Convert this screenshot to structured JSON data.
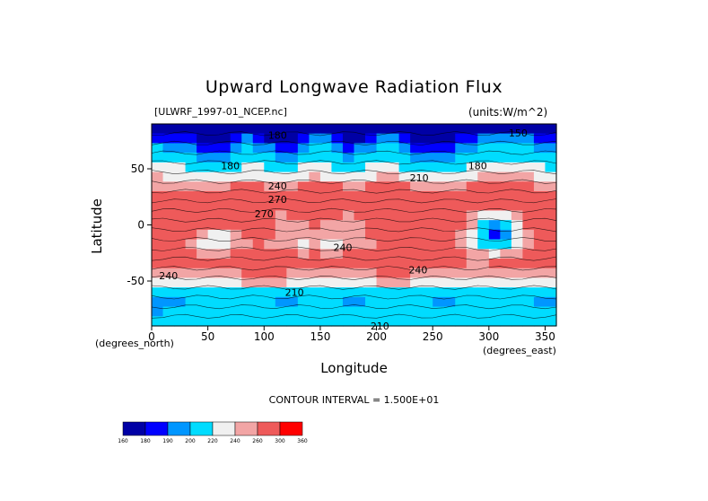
{
  "chart_data": {
    "type": "heatmap",
    "title": "Upward Longwave Radiation Flux",
    "subtitle_left": "[ULWRF_1997-01_NCEP.nc]",
    "subtitle_right": "(units:W/m^2)",
    "xlabel": "Longitude",
    "ylabel": "Latitude",
    "x_unit_label": "(degrees_east)",
    "y_unit_label": "(degrees_north)",
    "xlim": [
      0,
      360
    ],
    "ylim": [
      -90,
      90
    ],
    "x_ticks": [
      0,
      50,
      100,
      150,
      200,
      250,
      300,
      350
    ],
    "y_ticks": [
      50,
      0,
      -50
    ],
    "contour_interval_text": "CONTOUR INTERVAL = 1.500E+01",
    "contour_labels": [
      {
        "text": "180",
        "lon": 112,
        "lat": 80
      },
      {
        "text": "150",
        "lon": 326,
        "lat": 82
      },
      {
        "text": "180",
        "lon": 70,
        "lat": 53
      },
      {
        "text": "180",
        "lon": 290,
        "lat": 53
      },
      {
        "text": "240",
        "lon": 112,
        "lat": 35
      },
      {
        "text": "210",
        "lon": 238,
        "lat": 42
      },
      {
        "text": "270",
        "lon": 112,
        "lat": 23
      },
      {
        "text": "270",
        "lon": 100,
        "lat": 10
      },
      {
        "text": "240",
        "lon": 170,
        "lat": -20
      },
      {
        "text": "240",
        "lon": 237,
        "lat": -40
      },
      {
        "text": "240",
        "lon": 15,
        "lat": -45
      },
      {
        "text": "210",
        "lon": 127,
        "lat": -60
      },
      {
        "text": "210",
        "lon": 203,
        "lat": -90
      }
    ],
    "legend": {
      "levels": [
        "160",
        "180",
        "190",
        "200",
        "220",
        "240",
        "260",
        "300",
        "360"
      ],
      "colors": [
        "#0000a5",
        "#0000ff",
        "#0096ff",
        "#00dcff",
        "#f0f0f0",
        "#f2a5a5",
        "#ee5a5a",
        "#ff0000"
      ]
    },
    "field": [
      [
        170,
        168,
        166,
        164,
        160,
        158,
        160,
        166,
        172,
        170,
        160,
        156,
        160,
        168,
        175,
        172,
        164,
        158,
        160,
        168,
        176,
        174,
        166,
        158,
        152,
        150,
        156,
        162,
        168,
        172,
        176,
        174,
        176,
        172,
        168,
        166
      ],
      [
        188,
        186,
        184,
        180,
        176,
        174,
        176,
        182,
        190,
        188,
        178,
        172,
        176,
        184,
        192,
        190,
        182,
        176,
        178,
        186,
        194,
        192,
        184,
        176,
        170,
        168,
        174,
        180,
        186,
        190,
        194,
        192,
        194,
        190,
        186,
        184
      ],
      [
        200,
        198,
        196,
        192,
        186,
        182,
        186,
        192,
        200,
        198,
        190,
        184,
        188,
        196,
        204,
        202,
        194,
        188,
        190,
        198,
        206,
        204,
        196,
        188,
        182,
        180,
        186,
        192,
        198,
        202,
        206,
        204,
        206,
        202,
        198,
        196
      ],
      [
        212,
        210,
        206,
        202,
        196,
        192,
        196,
        202,
        210,
        208,
        200,
        194,
        198,
        206,
        214,
        212,
        204,
        198,
        200,
        208,
        216,
        214,
        206,
        198,
        192,
        190,
        196,
        202,
        208,
        212,
        216,
        214,
        216,
        212,
        208,
        206
      ],
      [
        226,
        224,
        220,
        216,
        210,
        206,
        208,
        214,
        222,
        220,
        214,
        208,
        212,
        220,
        226,
        224,
        218,
        212,
        214,
        220,
        228,
        226,
        218,
        212,
        206,
        204,
        208,
        214,
        220,
        224,
        228,
        226,
        228,
        224,
        220,
        218
      ],
      [
        240,
        238,
        236,
        232,
        226,
        222,
        224,
        230,
        236,
        234,
        228,
        224,
        228,
        234,
        240,
        238,
        232,
        228,
        230,
        236,
        242,
        240,
        234,
        228,
        222,
        220,
        224,
        230,
        236,
        240,
        242,
        240,
        242,
        240,
        236,
        234
      ],
      [
        256,
        254,
        252,
        250,
        248,
        250,
        256,
        262,
        264,
        262,
        258,
        256,
        258,
        262,
        266,
        264,
        260,
        258,
        258,
        262,
        266,
        264,
        260,
        256,
        252,
        250,
        252,
        256,
        260,
        262,
        264,
        262,
        262,
        260,
        258,
        256
      ],
      [
        272,
        270,
        268,
        266,
        268,
        272,
        276,
        278,
        276,
        272,
        268,
        270,
        272,
        274,
        276,
        274,
        272,
        270,
        270,
        272,
        274,
        272,
        270,
        268,
        266,
        264,
        266,
        270,
        272,
        274,
        274,
        272,
        272,
        270,
        272,
        272
      ],
      [
        282,
        280,
        276,
        274,
        276,
        278,
        282,
        284,
        280,
        274,
        270,
        272,
        276,
        278,
        280,
        276,
        272,
        270,
        272,
        276,
        280,
        278,
        276,
        274,
        272,
        270,
        272,
        276,
        278,
        280,
        280,
        278,
        276,
        278,
        280,
        282
      ],
      [
        288,
        286,
        280,
        276,
        274,
        278,
        284,
        286,
        282,
        276,
        266,
        258,
        262,
        270,
        274,
        270,
        264,
        256,
        260,
        268,
        276,
        282,
        286,
        288,
        286,
        284,
        278,
        264,
        250,
        236,
        226,
        236,
        254,
        270,
        280,
        286
      ],
      [
        290,
        288,
        284,
        280,
        276,
        278,
        284,
        288,
        284,
        276,
        264,
        252,
        248,
        256,
        262,
        258,
        252,
        248,
        254,
        264,
        274,
        282,
        288,
        290,
        290,
        288,
        280,
        262,
        240,
        212,
        196,
        210,
        238,
        262,
        280,
        288
      ],
      [
        286,
        284,
        278,
        262,
        240,
        228,
        236,
        252,
        266,
        270,
        260,
        248,
        240,
        246,
        250,
        244,
        240,
        242,
        250,
        262,
        272,
        280,
        286,
        288,
        288,
        284,
        276,
        258,
        232,
        206,
        184,
        196,
        228,
        256,
        276,
        284
      ],
      [
        280,
        278,
        272,
        258,
        236,
        220,
        226,
        242,
        258,
        264,
        258,
        248,
        240,
        238,
        242,
        238,
        236,
        240,
        248,
        258,
        268,
        276,
        282,
        284,
        284,
        280,
        272,
        256,
        234,
        214,
        200,
        208,
        232,
        256,
        272,
        280
      ],
      [
        276,
        276,
        272,
        266,
        258,
        252,
        254,
        262,
        270,
        274,
        272,
        266,
        260,
        258,
        260,
        258,
        258,
        262,
        266,
        270,
        274,
        278,
        280,
        280,
        278,
        274,
        268,
        260,
        250,
        242,
        238,
        242,
        254,
        266,
        272,
        276
      ],
      [
        270,
        270,
        268,
        266,
        264,
        262,
        262,
        266,
        272,
        276,
        276,
        272,
        268,
        264,
        262,
        262,
        264,
        266,
        268,
        270,
        272,
        274,
        274,
        272,
        270,
        266,
        262,
        260,
        258,
        258,
        260,
        262,
        266,
        268,
        270,
        270
      ],
      [
        256,
        256,
        254,
        254,
        252,
        252,
        252,
        256,
        262,
        266,
        266,
        262,
        258,
        254,
        252,
        252,
        254,
        256,
        256,
        258,
        260,
        260,
        260,
        258,
        256,
        254,
        252,
        252,
        254,
        256,
        258,
        258,
        258,
        258,
        256,
        256
      ],
      [
        238,
        238,
        236,
        236,
        236,
        236,
        236,
        238,
        242,
        246,
        246,
        242,
        238,
        236,
        234,
        234,
        236,
        236,
        236,
        238,
        240,
        240,
        240,
        238,
        236,
        236,
        236,
        236,
        236,
        238,
        238,
        238,
        238,
        238,
        238,
        238
      ],
      [
        212,
        212,
        210,
        210,
        210,
        212,
        214,
        216,
        216,
        214,
        212,
        210,
        208,
        208,
        208,
        208,
        210,
        210,
        210,
        212,
        214,
        214,
        212,
        212,
        210,
        210,
        210,
        212,
        212,
        214,
        214,
        214,
        214,
        212,
        212,
        212
      ],
      [
        196,
        196,
        198,
        200,
        202,
        204,
        206,
        206,
        204,
        202,
        200,
        198,
        198,
        200,
        202,
        202,
        200,
        198,
        198,
        200,
        202,
        204,
        204,
        202,
        200,
        198,
        198,
        200,
        202,
        204,
        204,
        204,
        202,
        200,
        198,
        196
      ],
      [
        198,
        200,
        204,
        208,
        212,
        214,
        214,
        212,
        208,
        206,
        206,
        206,
        208,
        212,
        214,
        212,
        208,
        206,
        206,
        210,
        214,
        216,
        214,
        210,
        206,
        204,
        206,
        210,
        214,
        216,
        214,
        210,
        206,
        204,
        202,
        200
      ],
      [
        204,
        206,
        210,
        214,
        216,
        216,
        214,
        212,
        210,
        210,
        212,
        214,
        216,
        216,
        214,
        212,
        210,
        210,
        212,
        214,
        216,
        216,
        214,
        212,
        210,
        210,
        212,
        214,
        216,
        216,
        214,
        212,
        210,
        208,
        206,
        204
      ]
    ]
  }
}
